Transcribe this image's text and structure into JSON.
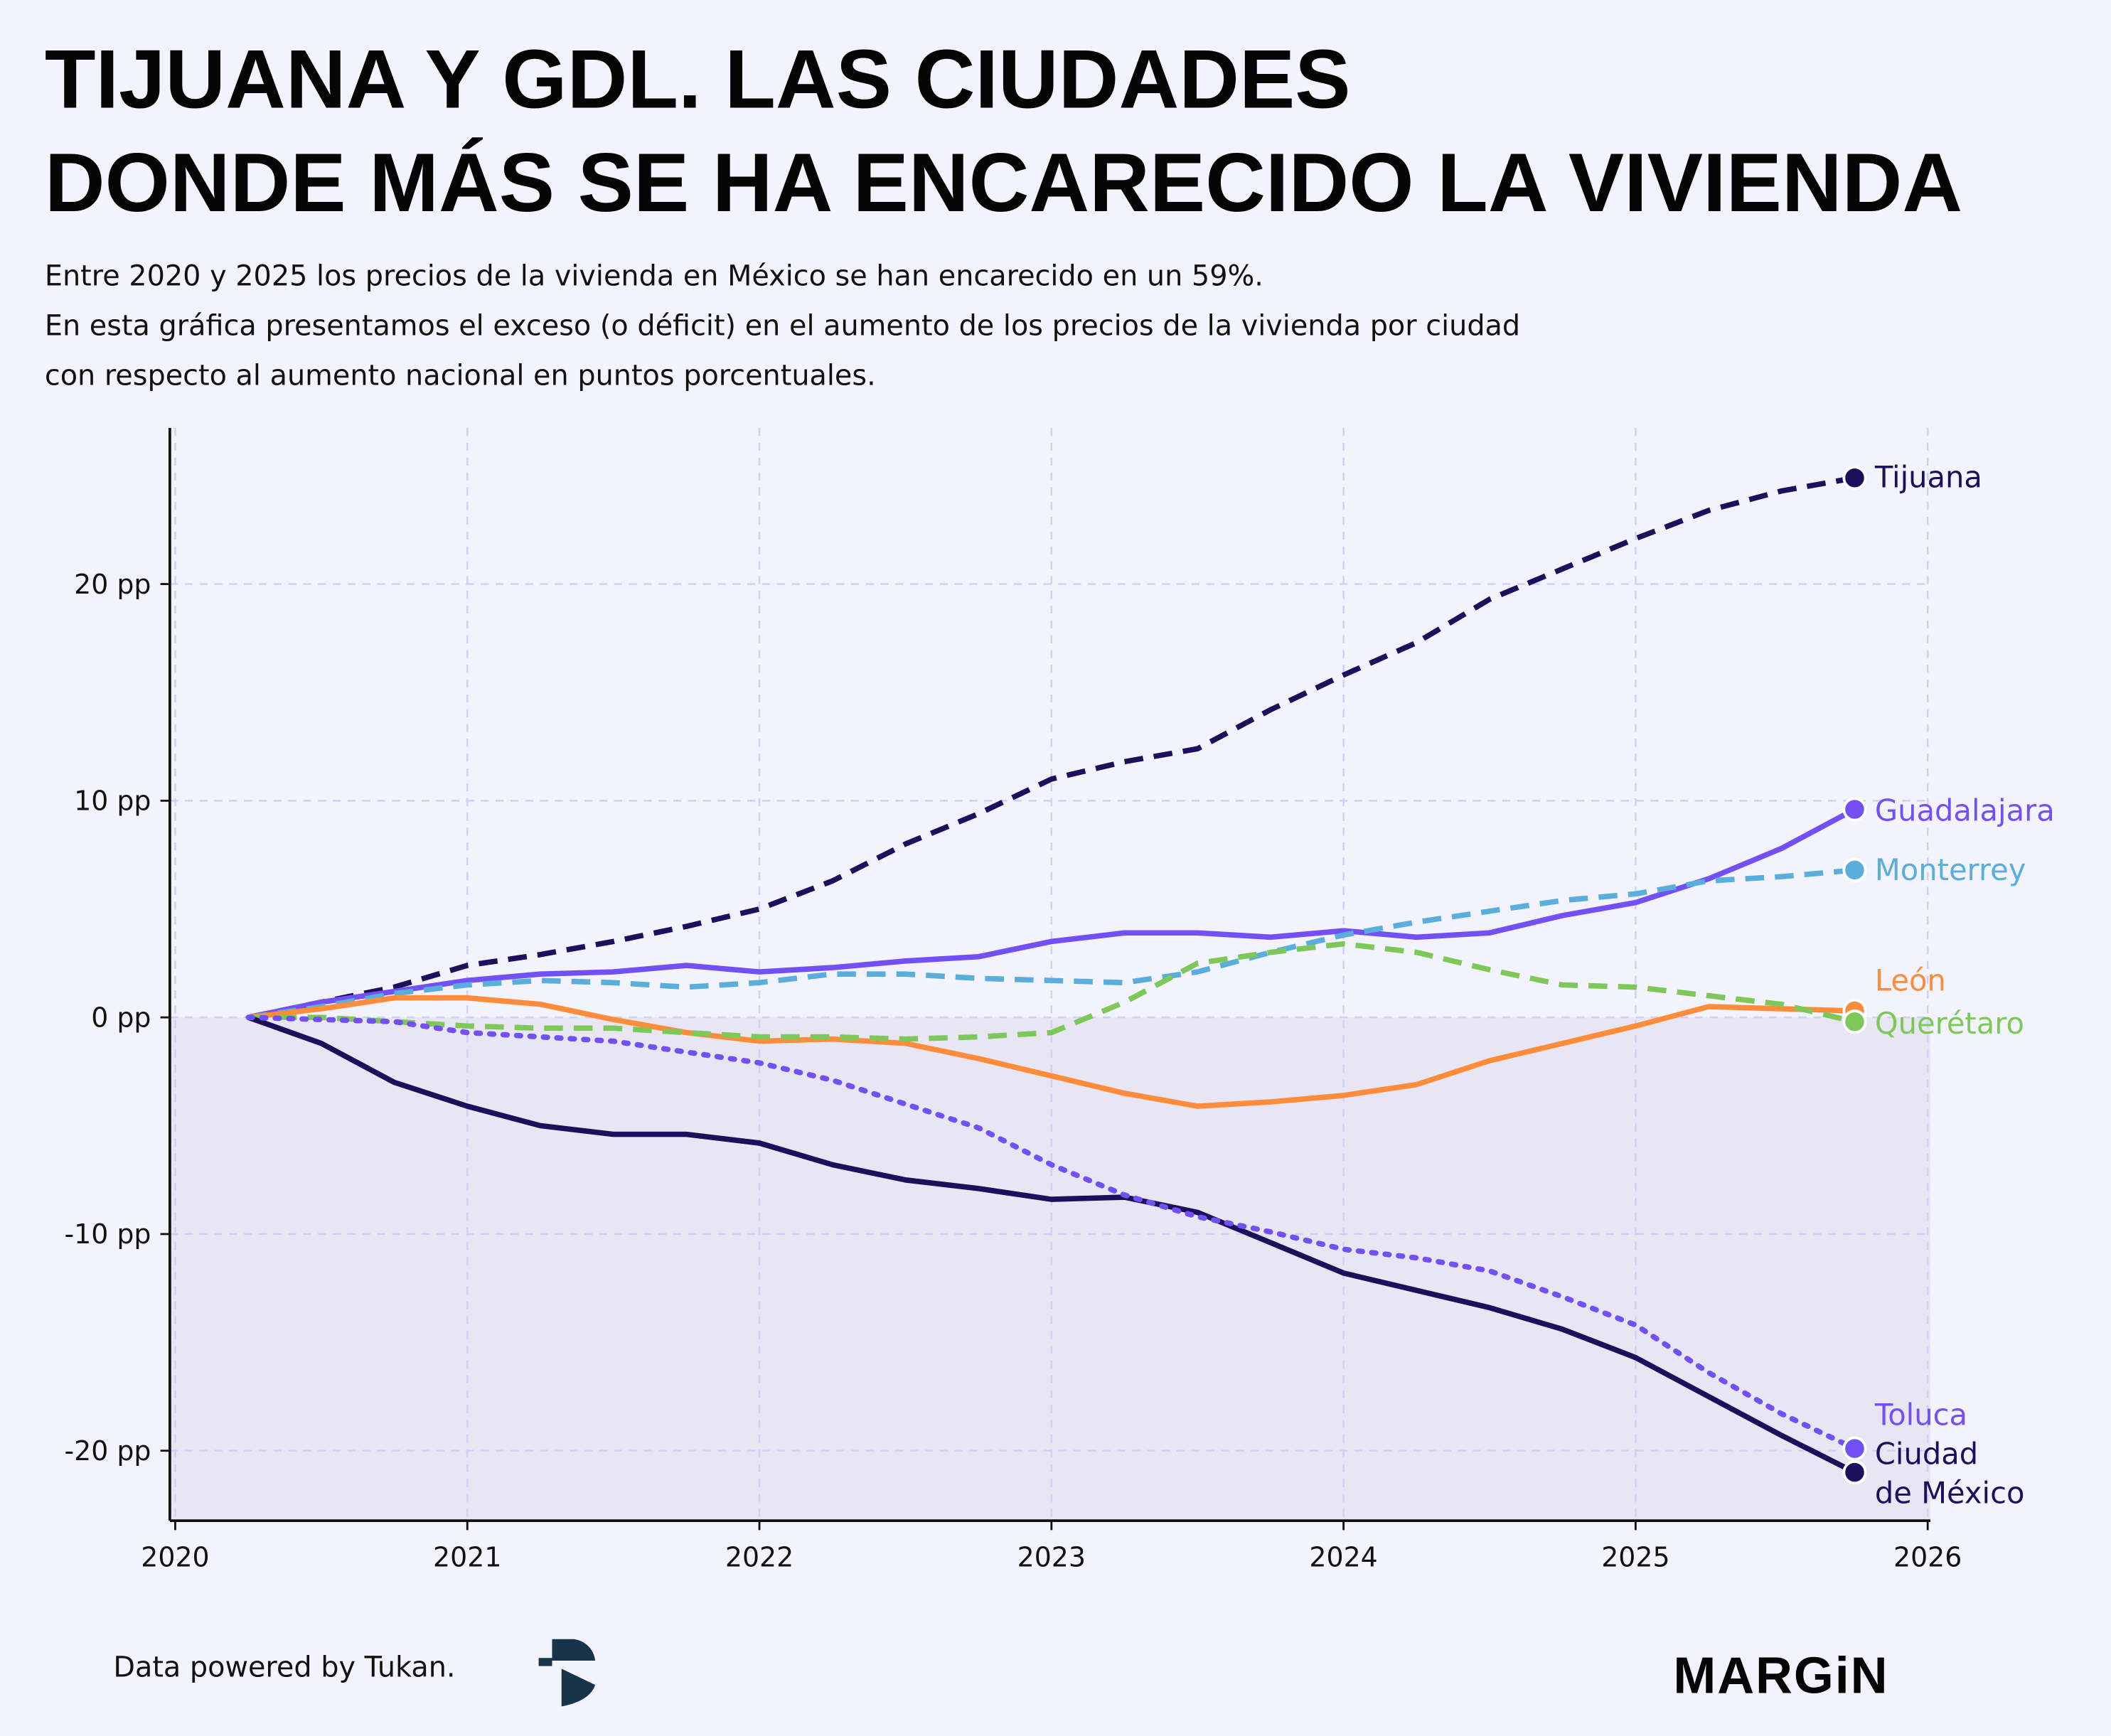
{
  "title": [
    "TIJUANA Y GDL. LAS CIUDADES",
    "DONDE MÁS SE HA ENCARECIDO LA VIVIENDA"
  ],
  "subtitle": [
    "Entre 2020 y 2025 los precios de la vivienda en México se han encarecido en un 59%.",
    "En esta gráfica presentamos el exceso (o déficit) en el aumento de los precios de la vivienda por ciudad",
    "con respecto al aumento nacional en puntos porcentuales."
  ],
  "footer": {
    "source": "Data powered by Tukan.",
    "brand": "MARGiN",
    "source_logo": "Tukan"
  },
  "colors": {
    "background": "#f3f3fe",
    "negative_area": "#e8e6f3",
    "grid": "#cfd0fa"
  },
  "chart_data": {
    "type": "line",
    "title": "TIJUANA Y GDL. LAS CIUDADES DONDE MÁS SE HA ENCARECIDO LA VIVIENDA",
    "xlabel": "",
    "ylabel": "",
    "xlim": [
      2020,
      2026
    ],
    "ylim": [
      -23,
      27
    ],
    "xticks": [
      2020,
      2021,
      2022,
      2023,
      2024,
      2025,
      2026
    ],
    "xtick_labels": [
      "2020",
      "2021",
      "2022",
      "2023",
      "2024",
      "2025",
      "2026"
    ],
    "yticks": [
      -20,
      -10,
      0,
      10,
      20
    ],
    "ytick_labels": [
      "-20 pp",
      "-10 pp",
      "0 pp",
      "10 pp",
      "20 pp"
    ],
    "grid": true,
    "x": [
      2020.25,
      2020.5,
      2020.75,
      2021,
      2021.25,
      2021.5,
      2021.75,
      2022,
      2022.25,
      2022.5,
      2022.75,
      2023,
      2023.25,
      2023.5,
      2023.75,
      2024,
      2024.25,
      2024.5,
      2024.75,
      2025,
      2025.25,
      2025.5,
      2025.75
    ],
    "series": [
      {
        "name": "Tijuana",
        "label": [
          "Tijuana"
        ],
        "color": "#1e0f5c",
        "style": "dashed",
        "values": [
          0,
          0.7,
          1.4,
          2.4,
          2.9,
          3.5,
          4.2,
          5.0,
          6.3,
          8.0,
          9.4,
          11.0,
          11.8,
          12.4,
          14.2,
          15.8,
          17.3,
          19.3,
          20.7,
          22.1,
          23.4,
          24.3,
          24.9
        ]
      },
      {
        "name": "Guadalajara",
        "label": [
          "Guadalajara"
        ],
        "color": "#7250f5",
        "style": "solid",
        "values": [
          0,
          0.7,
          1.2,
          1.7,
          2.0,
          2.1,
          2.4,
          2.1,
          2.3,
          2.6,
          2.8,
          3.5,
          3.9,
          3.9,
          3.7,
          4.0,
          3.7,
          3.9,
          4.7,
          5.3,
          6.4,
          7.8,
          9.6
        ]
      },
      {
        "name": "Monterrey",
        "label": [
          "Monterrey"
        ],
        "color": "#5aaedc",
        "style": "dashed",
        "values": [
          0,
          0.5,
          1.1,
          1.5,
          1.7,
          1.6,
          1.4,
          1.6,
          2.0,
          2.0,
          1.8,
          1.7,
          1.6,
          2.1,
          3.0,
          3.8,
          4.4,
          4.9,
          5.4,
          5.7,
          6.3,
          6.5,
          6.8
        ]
      },
      {
        "name": "León",
        "label": [
          "León"
        ],
        "color": "#ff8c3a",
        "style": "solid",
        "values": [
          0,
          0.4,
          0.9,
          0.9,
          0.6,
          -0.1,
          -0.7,
          -1.1,
          -1.0,
          -1.2,
          -1.9,
          -2.7,
          -3.5,
          -4.1,
          -3.9,
          -3.6,
          -3.1,
          -2.0,
          -1.2,
          -0.4,
          0.5,
          0.4,
          0.3
        ]
      },
      {
        "name": "Querétaro",
        "label": [
          "Querétaro"
        ],
        "color": "#7ec85a",
        "style": "dashed",
        "values": [
          0,
          0,
          -0.2,
          -0.4,
          -0.5,
          -0.5,
          -0.7,
          -0.9,
          -0.9,
          -1.0,
          -0.9,
          -0.7,
          0.7,
          2.5,
          3.0,
          3.4,
          3.0,
          2.2,
          1.5,
          1.4,
          1.0,
          0.6,
          -0.2
        ]
      },
      {
        "name": "Ciudad de México",
        "label": [
          "Ciudad",
          "de México"
        ],
        "color": "#1e0f5c",
        "style": "solid",
        "values": [
          0,
          -1.2,
          -3.0,
          -4.1,
          -5.0,
          -5.4,
          -5.4,
          -5.8,
          -6.8,
          -7.5,
          -7.9,
          -8.4,
          -8.3,
          -9.0,
          -10.4,
          -11.8,
          -12.6,
          -13.4,
          -14.4,
          -15.7,
          -17.5,
          -19.3,
          -21.0
        ]
      },
      {
        "name": "Toluca",
        "label": [
          "Toluca"
        ],
        "color": "#7250f5",
        "style": "dotted",
        "values": [
          0,
          -0.1,
          -0.2,
          -0.7,
          -0.9,
          -1.1,
          -1.6,
          -2.1,
          -2.9,
          -4.0,
          -5.1,
          -6.8,
          -8.2,
          -9.2,
          -9.9,
          -10.7,
          -11.1,
          -11.7,
          -12.9,
          -14.2,
          -16.4,
          -18.3,
          -19.9
        ]
      }
    ]
  }
}
